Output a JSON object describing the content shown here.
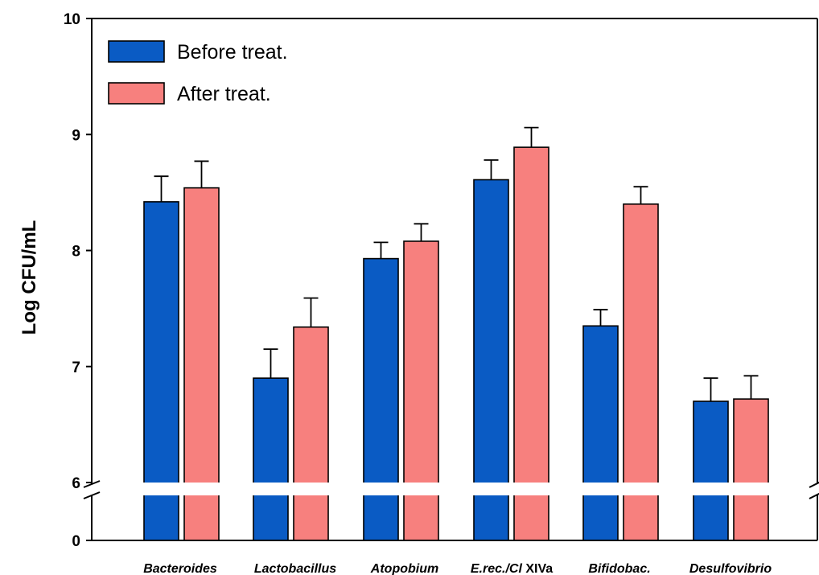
{
  "chart_data": {
    "type": "bar",
    "ylabel": "Log CFU/mL",
    "xlabel": "",
    "ylim": [
      6,
      10
    ],
    "axis_break": {
      "lower_tick": "0",
      "upper_start": 6
    },
    "yticks": [
      "10",
      "9",
      "8",
      "7",
      "6",
      "0"
    ],
    "categories": [
      {
        "name": "Bacteroides",
        "italic": true
      },
      {
        "name": "Lactobacillus",
        "italic": true
      },
      {
        "name": "Atopobium",
        "italic": true
      },
      {
        "name": "E.rec./Cl",
        "suffix": " XIVa",
        "italic": true
      },
      {
        "name": "Bifidobac.",
        "italic": true
      },
      {
        "name": "Desulfovibrio",
        "italic": true
      }
    ],
    "series": [
      {
        "name": "Before treat.",
        "color": "#0a5bc4",
        "values": [
          8.42,
          6.9,
          7.93,
          8.61,
          7.35,
          6.7
        ],
        "errors": [
          0.22,
          0.25,
          0.14,
          0.17,
          0.14,
          0.2
        ]
      },
      {
        "name": "After treat.",
        "color": "#f7807e",
        "values": [
          8.54,
          7.34,
          8.08,
          8.89,
          8.4,
          6.72
        ],
        "errors": [
          0.23,
          0.25,
          0.15,
          0.17,
          0.15,
          0.2
        ]
      }
    ],
    "legend_position": "top-left",
    "grid": false
  }
}
